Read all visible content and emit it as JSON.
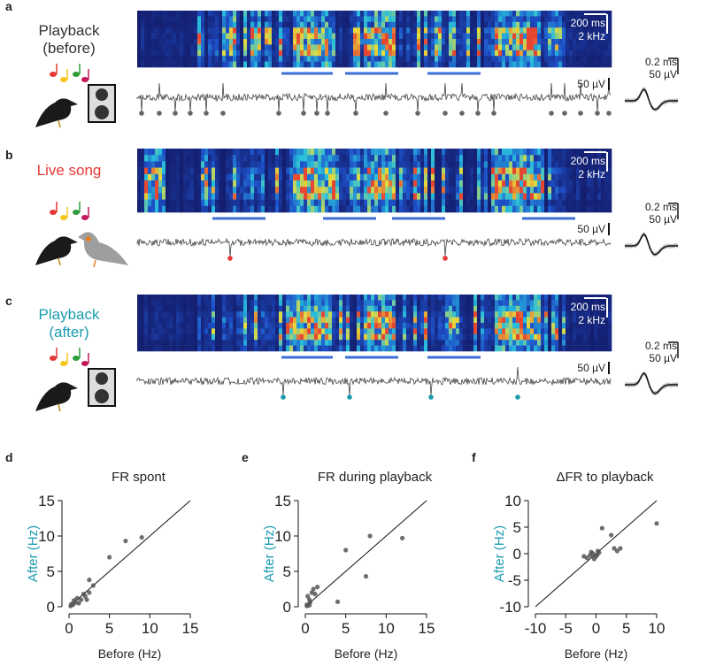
{
  "panels": [
    {
      "letter": "a",
      "label": [
        "Playback",
        "(before)"
      ],
      "scale_time": "200 ms",
      "scale_freq": "2 kHz",
      "scale_voltage": "50 µV",
      "wave_time": "0.2 ms",
      "wave_voltage": "50 µV"
    },
    {
      "letter": "b",
      "label": [
        "Live song"
      ],
      "scale_time": "200 ms",
      "scale_freq": "2 kHz",
      "scale_voltage": "50 µV",
      "wave_time": "0.2 ms",
      "wave_voltage": "50 µV"
    },
    {
      "letter": "c",
      "label": [
        "Playback",
        "(after)"
      ],
      "scale_time": "200 ms",
      "scale_freq": "2 kHz",
      "scale_voltage": "50 µV",
      "wave_time": "0.2 ms",
      "wave_voltage": "50 µV"
    }
  ],
  "chart_data": [
    {
      "type": "scatter",
      "letter": "d",
      "title": "FR spont",
      "xlabel": "Before (Hz)",
      "ylabel": "After (Hz)",
      "color": "#555555",
      "x": [
        0.2,
        0.5,
        0.8,
        1,
        1.5,
        2,
        2.5,
        3,
        2.5,
        5,
        7,
        9,
        0.3,
        1.2,
        1.8,
        0.6,
        2.2
      ],
      "y": [
        0.1,
        0.3,
        0.6,
        1.2,
        1,
        1.5,
        2,
        3,
        3.8,
        7,
        9.3,
        9.8,
        0.4,
        0.5,
        1.8,
        0.9,
        1
      ],
      "xlim": [
        0,
        15
      ],
      "ylim": [
        0,
        15
      ],
      "xticks": [
        0,
        5,
        10,
        15
      ],
      "yticks": [
        0,
        5,
        10,
        15
      ]
    },
    {
      "type": "scatter",
      "letter": "e",
      "title": "FR during playback",
      "xlabel": "Before (Hz)",
      "ylabel": "After (Hz)",
      "color": "#555555",
      "x": [
        0.2,
        0.5,
        0.8,
        1,
        0.3,
        1.5,
        0.2,
        0.5,
        5,
        8,
        12,
        7.5,
        4,
        0.6,
        1.2
      ],
      "y": [
        0.3,
        1,
        2,
        2.5,
        1.5,
        2.8,
        0.1,
        0.2,
        8,
        10,
        9.7,
        4.3,
        0.7,
        0.6,
        1.8
      ],
      "xlim": [
        0,
        15
      ],
      "ylim": [
        0,
        15
      ],
      "xticks": [
        0,
        5,
        10,
        15
      ],
      "yticks": [
        0,
        5,
        10,
        15
      ]
    },
    {
      "type": "scatter",
      "letter": "f",
      "title": "ΔFR to playback",
      "xlabel": "Before (Hz)",
      "ylabel": "After (Hz)",
      "color": "#555555",
      "x": [
        -1,
        -0.5,
        0,
        0.5,
        -0.3,
        -1.5,
        0.3,
        1,
        2.5,
        3,
        4,
        3.5,
        10,
        -0.8,
        0.2,
        -2
      ],
      "y": [
        -0.3,
        0,
        -0.5,
        0.2,
        -1,
        -0.8,
        0.5,
        4.8,
        3.5,
        1,
        1,
        0.5,
        5.7,
        0.3,
        -0.2,
        -0.5
      ],
      "xlim": [
        -10,
        10
      ],
      "ylim": [
        -10,
        10
      ],
      "xticks": [
        -10,
        -5,
        0,
        5,
        10
      ],
      "yticks": [
        -10,
        -5,
        0,
        5,
        10
      ]
    }
  ]
}
